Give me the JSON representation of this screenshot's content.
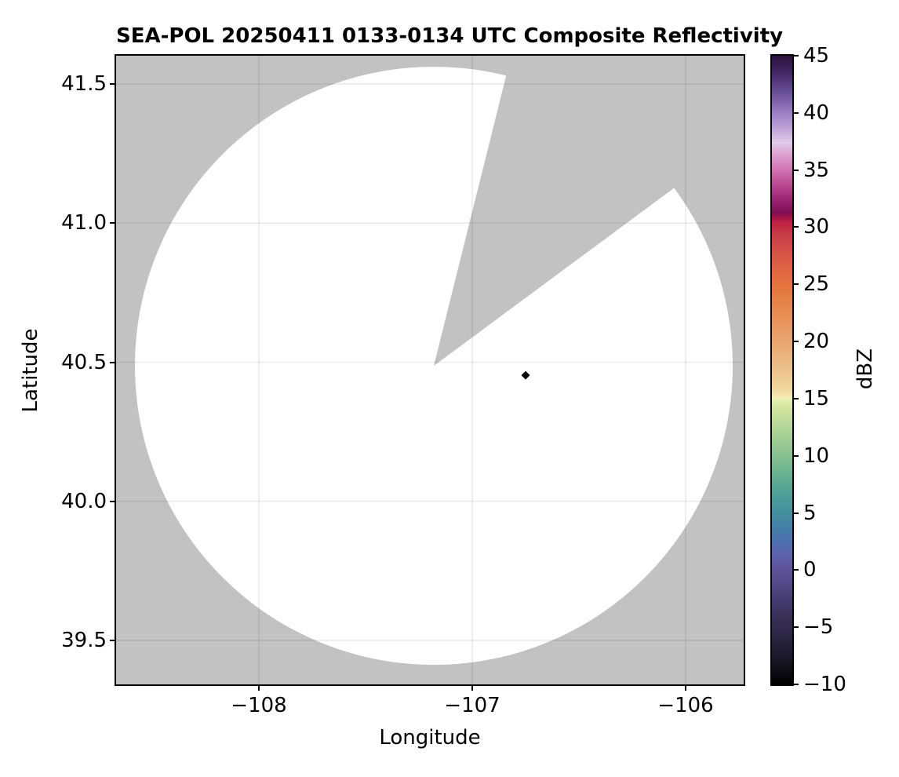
{
  "title": "SEA-POL 20250411 0133-0134 UTC Composite Reflectivity",
  "axes": {
    "xlabel": "Longitude",
    "ylabel": "Latitude",
    "x_ticks": [
      {
        "value": -108,
        "label": "−108"
      },
      {
        "value": -107,
        "label": "−107"
      },
      {
        "value": -106,
        "label": "−106"
      }
    ],
    "y_ticks": [
      {
        "value": 41.5,
        "label": "41.5"
      },
      {
        "value": 41.0,
        "label": "41.0"
      },
      {
        "value": 40.5,
        "label": "40.5"
      },
      {
        "value": 40.0,
        "label": "40.0"
      },
      {
        "value": 39.5,
        "label": "39.5"
      }
    ]
  },
  "colorbar": {
    "label": "dBZ",
    "min": -10,
    "max": 45,
    "ticks": [
      {
        "value": 45,
        "label": "45"
      },
      {
        "value": 40,
        "label": "40"
      },
      {
        "value": 35,
        "label": "35"
      },
      {
        "value": 30,
        "label": "30"
      },
      {
        "value": 25,
        "label": "25"
      },
      {
        "value": 20,
        "label": "20"
      },
      {
        "value": 15,
        "label": "15"
      },
      {
        "value": 10,
        "label": "10"
      },
      {
        "value": 5,
        "label": "5"
      },
      {
        "value": 0,
        "label": "0"
      },
      {
        "value": -5,
        "label": "−5"
      },
      {
        "value": -10,
        "label": "−10"
      }
    ],
    "gradient_stops": [
      [
        45,
        "#2b1240"
      ],
      [
        44,
        "#3a1f57"
      ],
      [
        43,
        "#4d3274"
      ],
      [
        42,
        "#644a91"
      ],
      [
        41,
        "#7e63aa"
      ],
      [
        40,
        "#9a7ec1"
      ],
      [
        39,
        "#b498d2"
      ],
      [
        38,
        "#cfb6e1"
      ],
      [
        37.4,
        "#e0cce9"
      ],
      [
        36.6,
        "#dfaad6"
      ],
      [
        35.8,
        "#d88ec4"
      ],
      [
        35,
        "#cf73b1"
      ],
      [
        34,
        "#c0529a"
      ],
      [
        33,
        "#aa3382"
      ],
      [
        32,
        "#921a6a"
      ],
      [
        31.3,
        "#7c0c55"
      ],
      [
        30.9,
        "#9d1349"
      ],
      [
        30.4,
        "#c01f44"
      ],
      [
        29.4,
        "#c83c47"
      ],
      [
        28.5,
        "#ce4947"
      ],
      [
        27.4,
        "#d75847"
      ],
      [
        26.5,
        "#dd6243"
      ],
      [
        25.6,
        "#e26c3f"
      ],
      [
        24.7,
        "#e4753f"
      ],
      [
        23.8,
        "#e57f45"
      ],
      [
        22.8,
        "#e78950"
      ],
      [
        21.7,
        "#e8935b"
      ],
      [
        20.8,
        "#e99d66"
      ],
      [
        19.9,
        "#eaa770"
      ],
      [
        19,
        "#ebb17a"
      ],
      [
        18,
        "#ecbd86"
      ],
      [
        16.9,
        "#eeca91"
      ],
      [
        16,
        "#f0d59c"
      ],
      [
        15.4,
        "#f3e3aa"
      ],
      [
        15.05,
        "#f5f0b8"
      ],
      [
        14.7,
        "#dcedaa"
      ],
      [
        14,
        "#cfe39f"
      ],
      [
        13.2,
        "#c0dc9b"
      ],
      [
        12.3,
        "#b0d597"
      ],
      [
        11.4,
        "#a0cd93"
      ],
      [
        10.5,
        "#90c592"
      ],
      [
        9.6,
        "#80bd90"
      ],
      [
        8.7,
        "#6fb491"
      ],
      [
        7.8,
        "#5fab92"
      ],
      [
        6.9,
        "#50a295"
      ],
      [
        6,
        "#479a9b"
      ],
      [
        5.1,
        "#44909f"
      ],
      [
        4.2,
        "#4386a4"
      ],
      [
        3.3,
        "#477aab"
      ],
      [
        2.4,
        "#4e6fb0"
      ],
      [
        1.5,
        "#5a63ae"
      ],
      [
        0.6,
        "#5e58a2"
      ],
      [
        -0.2,
        "#5d4f94"
      ],
      [
        -1,
        "#554a8a"
      ],
      [
        -2.5,
        "#473c71"
      ],
      [
        -4,
        "#3a305a"
      ],
      [
        -5,
        "#332a4e"
      ],
      [
        -6.5,
        "#262038"
      ],
      [
        -8,
        "#181425"
      ],
      [
        -9,
        "#0d0a14"
      ],
      [
        -10,
        "#000000"
      ]
    ]
  },
  "chart_data": {
    "type": "heatmap",
    "subtype": "radar-ppi-composite-reflectivity",
    "title": "SEA-POL 20250411 0133-0134 UTC Composite Reflectivity",
    "xlabel": "Longitude",
    "ylabel": "Latitude",
    "xlim": [
      -108.67,
      -105.73
    ],
    "ylim": [
      39.39,
      41.61
    ],
    "x_ticks": [
      -108,
      -107,
      -106
    ],
    "y_ticks": [
      39.5,
      40.0,
      40.5,
      41.0,
      41.5
    ],
    "grid": true,
    "legend_position": "right-colorbar",
    "colorbar": {
      "label": "dBZ",
      "min": -10,
      "max": 45,
      "ticks": [
        -10,
        -5,
        0,
        5,
        10,
        15,
        20,
        25,
        30,
        35,
        40,
        45
      ]
    },
    "radar_site": {
      "lon": -107.18,
      "lat": 40.487
    },
    "coverage_radius_deg_lat": 1.075,
    "no_data_sector_azimuth_deg": {
      "start": 14,
      "end": 53.5
    },
    "no_data_color": "#c2c2c2",
    "coverage_color": "#ffffff",
    "echoes": [
      {
        "lon": -106.75,
        "lat": 40.453,
        "approx_dbz": -10,
        "color": "#000000",
        "marker": "diamond"
      }
    ]
  }
}
